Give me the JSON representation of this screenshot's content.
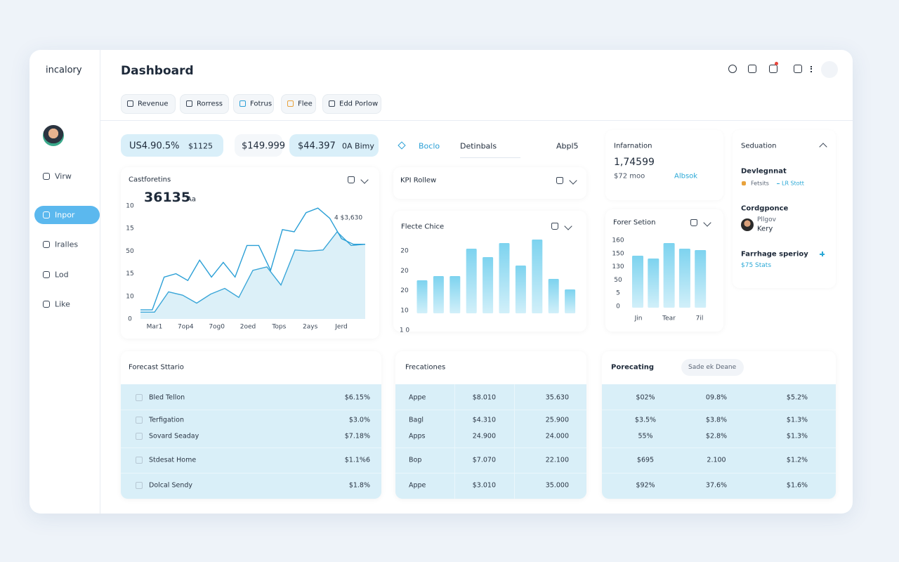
{
  "sidebar": {
    "logo": "incalory",
    "nav": [
      "Virw",
      "Inpor",
      "Iralles",
      "Lod",
      "Like"
    ],
    "active": 1
  },
  "header": {
    "title": "Dashboard"
  },
  "tabs": [
    "Revenue",
    "Rorress",
    "Fotrus",
    "Flee",
    "Edd Porlow"
  ],
  "stats": [
    [
      "US4.90.5%",
      "$1125"
    ],
    [
      "$149.999"
    ],
    [
      "$44.397",
      "0A Bimy"
    ]
  ],
  "view_tabs": [
    "Boclo",
    "Detinbals",
    "Abpl5"
  ],
  "info": {
    "title": "Infarnation",
    "value": "1,74599",
    "sub": "$72 moo",
    "link": "Albsok"
  },
  "side_panel": {
    "title": "Seduation",
    "items": [
      {
        "title": "Devlegnnat",
        "tags": [
          "Fetsits",
          "LR Stott"
        ]
      },
      {
        "title": "Cordgponce",
        "lines": [
          "Pllgov",
          "Kery"
        ]
      },
      {
        "title": "Farrhage sperioy",
        "sub": "$75 Stats"
      }
    ]
  },
  "kpi": {
    "title": "KPI Rollew"
  },
  "charts": {
    "line": {
      "type": "line",
      "title": "Castforetins",
      "value": "36135",
      "unit": "Aa",
      "annotation": "4 $3,630",
      "y_labels": [
        "10",
        "15",
        "50",
        "15",
        "10",
        "0"
      ],
      "categories": [
        "Mar1",
        "7op4",
        "7og0",
        "2oed",
        "Tops",
        "2ays",
        "Jerd"
      ],
      "ylim": [
        0,
        100
      ],
      "series": [
        {
          "color": "#2a9fd6",
          "values": [
            8,
            8,
            37,
            40,
            34,
            52,
            37,
            50,
            37,
            65,
            65,
            43,
            79,
            77,
            94,
            98,
            89,
            71,
            66,
            66
          ]
        },
        {
          "color": "#3aa6d8",
          "fill": "#d6edf7",
          "values": [
            6,
            6,
            24,
            21,
            14,
            22,
            27,
            19,
            43,
            46,
            30,
            61,
            60,
            61,
            77,
            65,
            66
          ]
        }
      ]
    },
    "bar1": {
      "type": "bar",
      "title": "Flecte Chice",
      "y_labels": [
        "20",
        "20",
        "20",
        "10",
        "1 0"
      ],
      "ylim": [
        0,
        110
      ],
      "color": "#7dd3ef",
      "values": [
        47,
        53,
        53,
        92,
        80,
        100,
        68,
        105,
        49,
        34
      ]
    },
    "bar2": {
      "type": "bar",
      "title": "Forer Setion",
      "y_labels": [
        "160",
        "150",
        "130",
        "50",
        "5",
        "0"
      ],
      "ylim": [
        0,
        100
      ],
      "x_labels": [
        "Jin",
        "Tear",
        "7il"
      ],
      "color": "#7dd3ef",
      "values": [
        74,
        70,
        92,
        84,
        82
      ]
    }
  },
  "tables": [
    {
      "title": "Forecast Sttario",
      "rows": [
        [
          "Bled Tellon",
          "$6.15%"
        ],
        [
          "Terfigation",
          "$3.0%"
        ],
        [
          "Sovard Seaday",
          "$7.18%"
        ],
        [
          "Stdesat Home",
          "$1.1%6"
        ],
        [
          "Dolcal Sendy",
          "$1.8%"
        ]
      ]
    },
    {
      "title": "Frecationes",
      "rows": [
        [
          "Appe",
          "$8.010",
          "35.630"
        ],
        [
          "Bagl",
          "$4.310",
          "25.900"
        ],
        [
          "Apps",
          "24.900",
          "24.000"
        ],
        [
          "Bop",
          "$7.070",
          "22.100"
        ],
        [
          "Appe",
          "$3.010",
          "35.000"
        ]
      ]
    },
    {
      "title": "Porecating",
      "badge": "Sade ek Deane",
      "rows": [
        [
          "$02%",
          "09.8%",
          "$5.2%"
        ],
        [
          "$3.5%",
          "$3.8%",
          "$1.3%"
        ],
        [
          "55%",
          "$2.8%",
          "$1.3%"
        ],
        [
          "$695",
          "2.100",
          "$1.2%"
        ],
        [
          "$92%",
          "37.6%",
          "$1.6%"
        ]
      ]
    }
  ]
}
